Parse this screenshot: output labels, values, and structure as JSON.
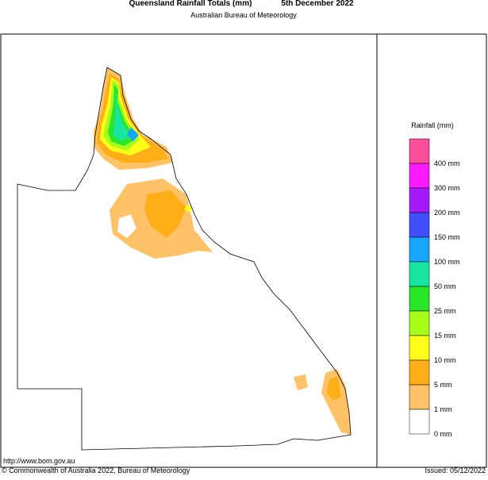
{
  "header": {
    "title": "Queensland Rainfall Totals (mm)",
    "date": "5th December 2022",
    "subtitle": "Australian Bureau of Meteorology"
  },
  "legend": {
    "title": "Rainfall (mm)",
    "items": [
      {
        "label": "400 mm",
        "color": "#ff4f9c"
      },
      {
        "label": "300 mm",
        "color": "#ff1aff"
      },
      {
        "label": "200 mm",
        "color": "#a31aff"
      },
      {
        "label": "150 mm",
        "color": "#3f4fff"
      },
      {
        "label": "100 mm",
        "color": "#17a6ff"
      },
      {
        "label": "50 mm",
        "color": "#17e6a0"
      },
      {
        "label": "25 mm",
        "color": "#29e629"
      },
      {
        "label": "15 mm",
        "color": "#a6ff1a"
      },
      {
        "label": "10 mm",
        "color": "#ffff1a"
      },
      {
        "label": "5 mm",
        "color": "#ffae17"
      },
      {
        "label": "1 mm",
        "color": "#ffc266"
      },
      {
        "label": "0 mm",
        "color": "#ffffff"
      }
    ]
  },
  "footer": {
    "url": "http://www.bom.gov.au",
    "copyright": "© Commonwealth of Australia 2022, Bureau of Meteorology",
    "issued": "Issued: 05/12/2022"
  }
}
